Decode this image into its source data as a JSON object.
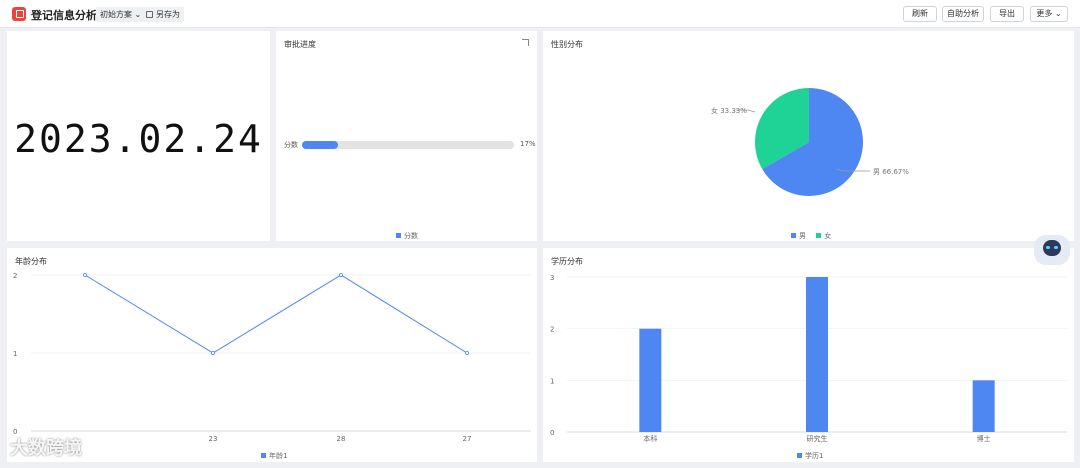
{
  "header": {
    "title": "登记信息分析",
    "scheme_label": "初始方案",
    "saveas_label": "另存为",
    "refresh_label": "刷新",
    "selfanalysis_label": "自助分析",
    "export_label": "导出",
    "more_label": "更多"
  },
  "date_panel": {
    "value": "2023.02.24"
  },
  "progress_panel": {
    "title": "审批进度",
    "label": "分数",
    "percent": 17,
    "percent_text": "17%",
    "legend": "分数",
    "color": "#4e86f2"
  },
  "gender_panel": {
    "title": "性别分布",
    "slices": [
      {
        "name": "男",
        "value": 66.67,
        "label": "男 66.67%",
        "color": "#4e86f2"
      },
      {
        "name": "女",
        "value": 33.33,
        "label": "女 33.33%",
        "color": "#1fd396"
      }
    ],
    "legend_male": "男",
    "legend_female": "女"
  },
  "age_panel": {
    "title": "年龄分布",
    "legend": "年龄1",
    "y_ticks": [
      "0",
      "1",
      "2"
    ],
    "x_labels": [
      "",
      "23",
      "28",
      "27"
    ],
    "color": "#4e86f2"
  },
  "edu_panel": {
    "title": "学历分布",
    "legend": "学历1",
    "y_ticks": [
      "0",
      "1",
      "2",
      "3"
    ],
    "color": "#4e86f2"
  },
  "watermark": "大数跨境",
  "chart_data": [
    {
      "type": "line",
      "title": "年龄分布",
      "x": [
        "",
        "23",
        "28",
        "27"
      ],
      "series": [
        {
          "name": "年龄1",
          "values": [
            2,
            1,
            2,
            1
          ]
        }
      ],
      "ylim": [
        0,
        2
      ]
    },
    {
      "type": "bar",
      "title": "学历分布",
      "categories": [
        "本科",
        "研究生",
        "博士"
      ],
      "series": [
        {
          "name": "学历1",
          "values": [
            2,
            3,
            1
          ]
        }
      ],
      "ylim": [
        0,
        3
      ]
    },
    {
      "type": "pie",
      "title": "性别分布",
      "categories": [
        "男",
        "女"
      ],
      "values": [
        66.67,
        33.33
      ]
    }
  ]
}
